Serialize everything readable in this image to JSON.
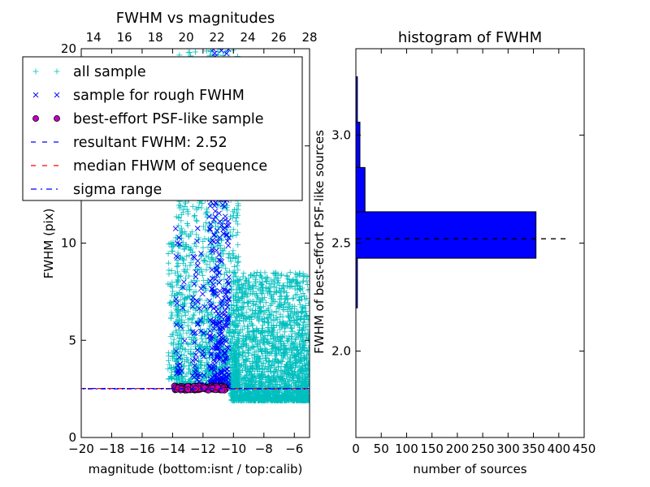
{
  "chart_data": [
    {
      "type": "scatter",
      "title": "FWHM vs magnitudes",
      "xlabel": "magnitude (bottom:isnt / top:calib)",
      "ylabel": "FWHM (pix)",
      "xlim": [
        -20,
        -5
      ],
      "ylim": [
        0,
        20
      ],
      "top_xlim": [
        13.2,
        28.0
      ],
      "x_ticks": [
        -20,
        -18,
        -16,
        -14,
        -12,
        -10,
        -8,
        -6
      ],
      "x_tick_labels": [
        "−20",
        "−18",
        "−16",
        "−14",
        "−12",
        "−10",
        "−8",
        "−6"
      ],
      "y_ticks": [
        0,
        5,
        10,
        15,
        20
      ],
      "y_tick_labels": [
        "0",
        "5",
        "10",
        "15",
        "20"
      ],
      "top_x_ticks": [
        14,
        16,
        18,
        20,
        22,
        24,
        26,
        28
      ],
      "top_x_tick_labels": [
        "14",
        "16",
        "18",
        "20",
        "22",
        "24",
        "26",
        "28"
      ],
      "legend_position": "top-left",
      "legend": [
        {
          "label": "all sample",
          "marker": "+",
          "color": "#00bfbf"
        },
        {
          "label": "sample for rough FWHM",
          "marker": "x",
          "color": "#0000ff"
        },
        {
          "label": "best-effort PSF-like sample",
          "marker": "o",
          "color": "#bf00bf"
        },
        {
          "label": "resultant FWHM: 2.52",
          "marker": "--",
          "color": "#0000ff"
        },
        {
          "label": "median FHWM of sequence",
          "marker": "--",
          "color": "#ff0000"
        },
        {
          "label": "sigma range",
          "marker": "-.",
          "color": "#0000ff"
        }
      ],
      "series": [
        {
          "name": "all sample",
          "color": "#00bfbf",
          "cloud_regions": [
            {
              "x_range": [
                -13.8,
                -9.6
              ],
              "y_range": [
                2.6,
                20
              ],
              "approx_count": 1500
            },
            {
              "x_range": [
                -10.2,
                -5.0
              ],
              "y_range": [
                1.9,
                8.5
              ],
              "approx_count": 2200
            },
            {
              "x_range": [
                -14.3,
                -13.4
              ],
              "y_range": [
                3.0,
                10.5
              ],
              "approx_count": 150
            }
          ]
        },
        {
          "name": "sample for rough FWHM",
          "color": "#0000ff",
          "cloud_regions": [
            {
              "x_range": [
                -11.6,
                -10.3
              ],
              "y_range": [
                2.6,
                20
              ],
              "approx_count": 360
            },
            {
              "x_range": [
                -13.8,
                -13.2
              ],
              "y_range": [
                3.3,
                11.2
              ],
              "approx_count": 25
            },
            {
              "x_range": [
                -12.7,
                -11.9
              ],
              "y_range": [
                2.6,
                11.0
              ],
              "approx_count": 60
            }
          ]
        },
        {
          "name": "best-effort PSF-like sample",
          "color": "#bf00bf",
          "cloud_regions": [
            {
              "x_range": [
                -13.9,
                -10.5
              ],
              "y_range": [
                2.43,
                2.65
              ],
              "approx_count": 160
            }
          ]
        }
      ],
      "reference_lines": [
        {
          "name": "resultant FWHM: 2.52",
          "y": 2.52,
          "style": "dashed",
          "color": "#0000ff"
        },
        {
          "name": "median FHWM of sequence",
          "y": 2.52,
          "style": "dashed",
          "color": "#ff0000"
        },
        {
          "name": "sigma range",
          "y": 2.52,
          "style": "dashdot",
          "color": "#0000ff"
        }
      ]
    },
    {
      "type": "bar",
      "orientation": "horizontal",
      "title": "histogram of FWHM",
      "xlabel": "number of sources",
      "ylabel": "FWHM of best-effort PSF-like sources",
      "xlim": [
        0,
        450
      ],
      "ylim": [
        1.6,
        3.4
      ],
      "x_ticks": [
        0,
        50,
        100,
        150,
        200,
        250,
        300,
        350,
        400,
        450
      ],
      "x_tick_labels": [
        "0",
        "50",
        "100",
        "150",
        "200",
        "250",
        "300",
        "350",
        "400",
        "450"
      ],
      "y_ticks": [
        2.0,
        2.5,
        3.0
      ],
      "y_tick_labels": [
        "2.0",
        "2.5",
        "3.0"
      ],
      "bars": [
        {
          "bin": [
            2.2,
            2.43
          ],
          "value": 3
        },
        {
          "bin": [
            2.43,
            2.645
          ],
          "value": 355
        },
        {
          "bin": [
            2.645,
            2.85
          ],
          "value": 18
        },
        {
          "bin": [
            2.85,
            3.06
          ],
          "value": 8
        },
        {
          "bin": [
            3.06,
            3.27
          ],
          "value": 3
        }
      ],
      "bar_color": "#0000ff",
      "reference_line": {
        "y": 2.52,
        "x_range": [
          0,
          415
        ],
        "style": "dashed",
        "color": "#000000"
      }
    }
  ]
}
